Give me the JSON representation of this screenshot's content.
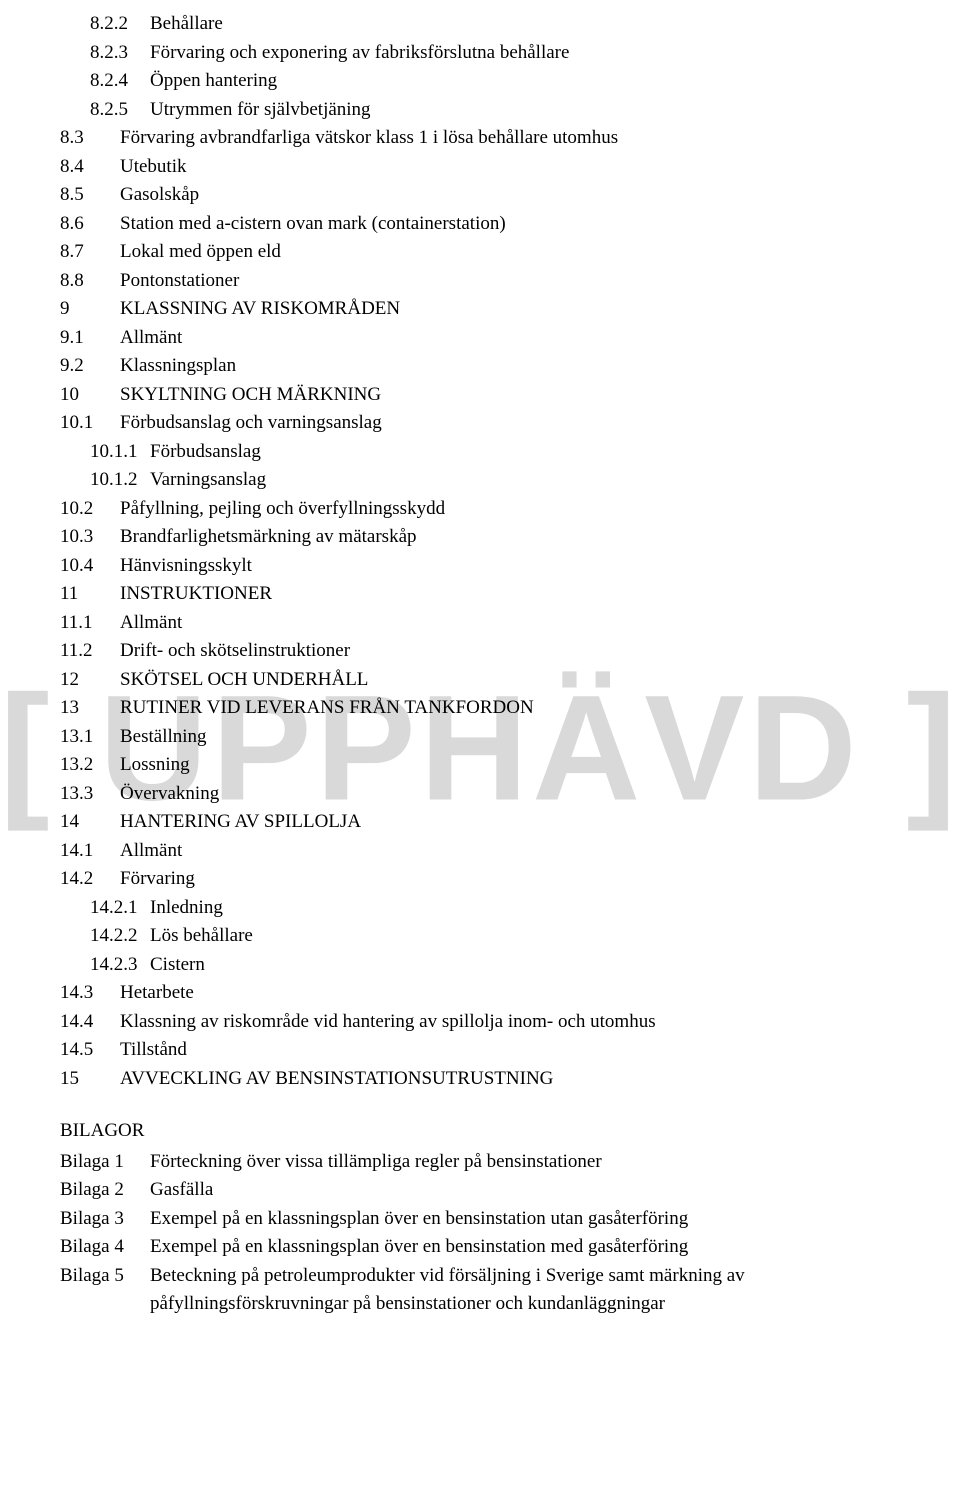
{
  "watermark": "[ UPPHÄVD ]",
  "toc": [
    {
      "num": "8.2.2",
      "text": "Behållare",
      "indent": 1
    },
    {
      "num": "8.2.3",
      "text": "Förvaring och exponering av fabriksförslutna behållare",
      "indent": 1
    },
    {
      "num": "8.2.4",
      "text": "Öppen hantering",
      "indent": 1
    },
    {
      "num": "8.2.5",
      "text": "Utrymmen för självbetjäning",
      "indent": 1
    },
    {
      "num": "8.3",
      "text": "Förvaring avbrandfarliga vätskor klass 1 i lösa behållare utomhus",
      "indent": 0
    },
    {
      "num": "8.4",
      "text": "Utebutik",
      "indent": 0
    },
    {
      "num": "8.5",
      "text": "Gasolskåp",
      "indent": 0
    },
    {
      "num": "8.6",
      "text": "Station med a-cistern ovan mark (containerstation)",
      "indent": 0
    },
    {
      "num": "8.7",
      "text": "Lokal med öppen eld",
      "indent": 0
    },
    {
      "num": "8.8",
      "text": "Pontonstationer",
      "indent": 0
    },
    {
      "num": "9",
      "text": "KLASSNING AV RISKOMRÅDEN",
      "indent": 0
    },
    {
      "num": "9.1",
      "text": "Allmänt",
      "indent": 0
    },
    {
      "num": "9.2",
      "text": "Klassningsplan",
      "indent": 0
    },
    {
      "num": "10",
      "text": "SKYLTNING OCH MÄRKNING",
      "indent": 0
    },
    {
      "num": "10.1",
      "text": "Förbudsanslag och varningsanslag",
      "indent": 0
    },
    {
      "num": "10.1.1",
      "text": "Förbudsanslag",
      "indent": 1
    },
    {
      "num": "10.1.2",
      "text": "Varningsanslag",
      "indent": 1
    },
    {
      "num": "10.2",
      "text": "Påfyllning, pejling och överfyllningsskydd",
      "indent": 0
    },
    {
      "num": "10.3",
      "text": "Brandfarlighetsmärkning av mätarskåp",
      "indent": 0
    },
    {
      "num": "10.4",
      "text": "Hänvisningsskylt",
      "indent": 0
    },
    {
      "num": "11",
      "text": "INSTRUKTIONER",
      "indent": 0
    },
    {
      "num": "11.1",
      "text": "Allmänt",
      "indent": 0
    },
    {
      "num": "11.2",
      "text": "Drift- och skötselinstruktioner",
      "indent": 0
    },
    {
      "num": "12",
      "text": "SKÖTSEL OCH UNDERHÅLL",
      "indent": 0
    },
    {
      "num": "13",
      "text": "RUTINER VID LEVERANS FRÅN TANKFORDON",
      "indent": 0
    },
    {
      "num": "13.1",
      "text": "Beställning",
      "indent": 0
    },
    {
      "num": "13.2",
      "text": "Lossning",
      "indent": 0
    },
    {
      "num": "13.3",
      "text": "Övervakning",
      "indent": 0
    },
    {
      "num": "14",
      "text": "HANTERING AV SPILLOLJA",
      "indent": 0
    },
    {
      "num": "14.1",
      "text": "Allmänt",
      "indent": 0
    },
    {
      "num": "14.2",
      "text": "Förvaring",
      "indent": 0
    },
    {
      "num": "14.2.1",
      "text": "Inledning",
      "indent": 1
    },
    {
      "num": "14.2.2",
      "text": "Lös behållare",
      "indent": 1
    },
    {
      "num": "14.2.3",
      "text": "Cistern",
      "indent": 1
    },
    {
      "num": "14.3",
      "text": "Hetarbete",
      "indent": 0
    },
    {
      "num": "14.4",
      "text": "Klassning av riskområde vid hantering av spillolja inom- och utomhus",
      "indent": 0
    },
    {
      "num": "14.5",
      "text": "Tillstånd",
      "indent": 0
    },
    {
      "num": "15",
      "text": "AVVECKLING AV BENSINSTATIONSUTRUSTNING",
      "indent": 0
    }
  ],
  "bilagor_title": "BILAGOR",
  "bilagor": [
    {
      "num": "Bilaga 1",
      "text": "Förteckning över vissa tillämpliga regler på bensinstationer"
    },
    {
      "num": "Bilaga 2",
      "text": "Gasfälla"
    },
    {
      "num": "Bilaga 3",
      "text": "Exempel på en klassningsplan över en bensinstation utan gasåterföring"
    },
    {
      "num": "Bilaga 4",
      "text": "Exempel på en klassningsplan över en bensinstation med gasåterföring"
    },
    {
      "num": "Bilaga 5",
      "text": "Beteckning på petroleumprodukter vid försäljning i Sverige samt märkning av påfyllningsförskruvningar på bensinstationer och kundanläggningar"
    }
  ]
}
